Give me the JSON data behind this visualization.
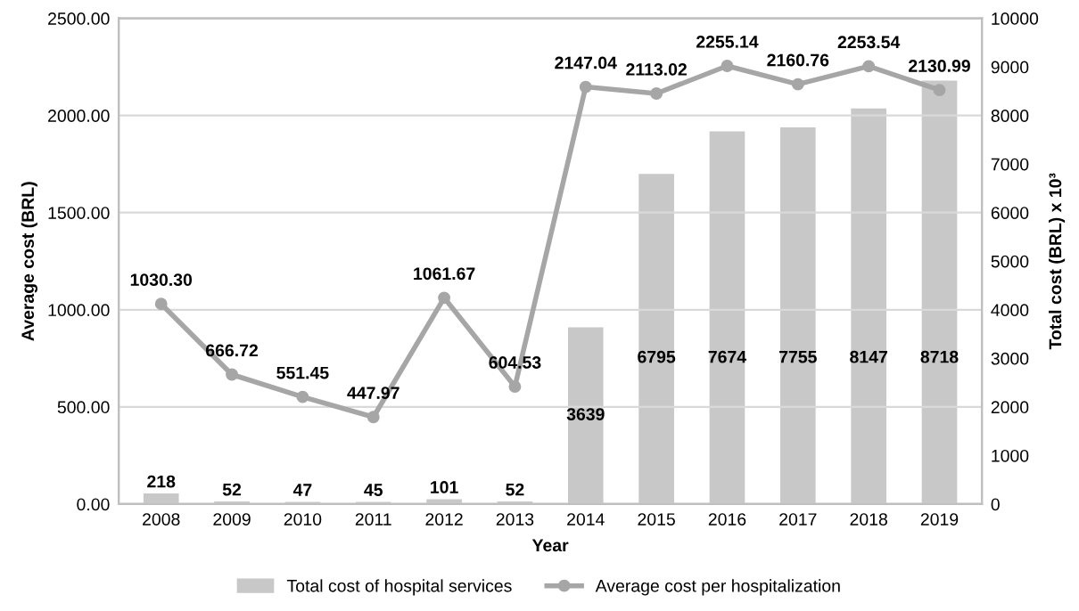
{
  "chart_data": {
    "type": "bar",
    "xlabel": "Year",
    "ylabel": "Average cost (BRL)",
    "y2label": "Total cost (BRL) x 10³",
    "categories": [
      "2008",
      "2009",
      "2010",
      "2011",
      "2012",
      "2013",
      "2014",
      "2015",
      "2016",
      "2017",
      "2018",
      "2019"
    ],
    "series": [
      {
        "name": "Total cost of hospital services",
        "axis": "y2",
        "color": "#c8c8c8",
        "values": [
          218,
          52,
          47,
          45,
          101,
          52,
          3639,
          6795,
          7674,
          7755,
          8147,
          8718
        ],
        "value_labels": [
          "218",
          "52",
          "47",
          "45",
          "101",
          "52",
          "3639",
          "6795",
          "7674",
          "7755",
          "8147",
          "8718"
        ]
      },
      {
        "name": "Average cost per hospitalization",
        "type": "line",
        "axis": "y",
        "color": "#a6a6a6",
        "marker": "circle",
        "values": [
          1030.3,
          666.72,
          551.45,
          447.97,
          1061.67,
          604.53,
          2147.04,
          2113.02,
          2255.14,
          2160.76,
          2253.54,
          2130.99
        ],
        "value_labels": [
          "1030.30",
          "666.72",
          "551.45",
          "447.97",
          "1061.67",
          "604.53",
          "2147.04",
          "2113.02",
          "2255.14",
          "2160.76",
          "2253.54",
          "2130.99"
        ]
      }
    ],
    "ylim": [
      0,
      2500
    ],
    "yticks": [
      {
        "value": 0,
        "label": "0.00"
      },
      {
        "value": 500,
        "label": "500.00"
      },
      {
        "value": 1000,
        "label": "1000.00"
      },
      {
        "value": 1500,
        "label": "1500.00"
      },
      {
        "value": 2000,
        "label": "2000.00"
      },
      {
        "value": 2500,
        "label": "2500.00"
      }
    ],
    "y2lim": [
      0,
      10000
    ],
    "y2ticks": [
      0,
      1000,
      2000,
      3000,
      4000,
      5000,
      6000,
      7000,
      8000,
      9000,
      10000
    ],
    "grid": "y",
    "legend": "bottom"
  }
}
